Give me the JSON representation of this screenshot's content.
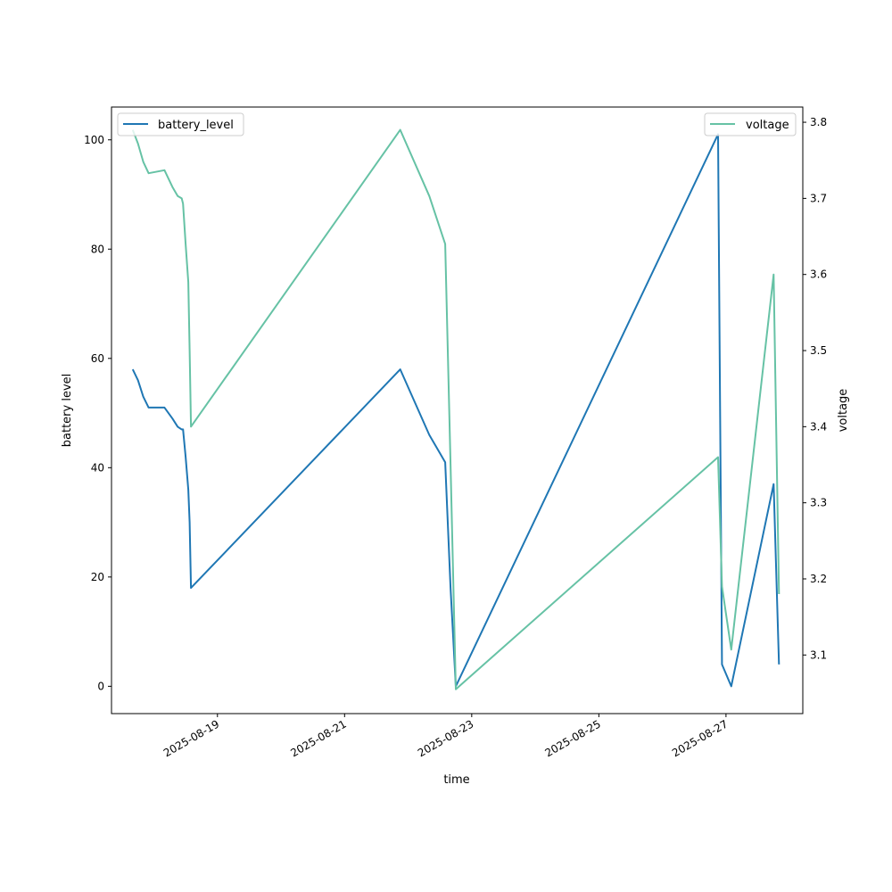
{
  "chart_data": {
    "type": "line",
    "xlabel": "time",
    "ylabel_left": "battery level",
    "ylabel_right": "voltage",
    "x_tick_labels": [
      "2025-08-19",
      "2025-08-21",
      "2025-08-23",
      "2025-08-25",
      "2025-08-27"
    ],
    "y_left_ticks": [
      0,
      20,
      40,
      60,
      80,
      100
    ],
    "y_right_ticks": [
      3.1,
      3.2,
      3.3,
      3.4,
      3.5,
      3.6,
      3.7,
      3.8
    ],
    "x_range": [
      "2025-08-17T08:00",
      "2025-08-28T05:00"
    ],
    "ylim_left": [
      -5,
      106
    ],
    "ylim_right": [
      3.023,
      3.82
    ],
    "legend_left": {
      "label": "battery_level",
      "position": "upper-left"
    },
    "legend_right": {
      "label": "voltage",
      "position": "upper-right"
    },
    "colors": {
      "battery_level": "#1f77b4",
      "voltage": "#66c2a5"
    },
    "series": [
      {
        "name": "battery_level",
        "axis": "left",
        "points": [
          [
            "2025-08-17T16:00",
            58
          ],
          [
            "2025-08-17T18:00",
            56
          ],
          [
            "2025-08-17T20:00",
            53
          ],
          [
            "2025-08-17T22:00",
            51
          ],
          [
            "2025-08-18T04:00",
            51
          ],
          [
            "2025-08-18T07:00",
            49
          ],
          [
            "2025-08-18T09:00",
            47.5
          ],
          [
            "2025-08-18T10:30",
            47
          ],
          [
            "2025-08-18T11:00",
            47
          ],
          [
            "2025-08-18T12:00",
            42
          ],
          [
            "2025-08-18T13:00",
            36
          ],
          [
            "2025-08-18T13:30",
            30
          ],
          [
            "2025-08-18T14:00",
            18
          ],
          [
            "2025-08-21T21:00",
            58
          ],
          [
            "2025-08-22T08:00",
            46
          ],
          [
            "2025-08-22T14:00",
            41
          ],
          [
            "2025-08-22T16:00",
            18
          ],
          [
            "2025-08-22T18:00",
            0
          ],
          [
            "2025-08-26T21:00",
            101
          ],
          [
            "2025-08-26T22:30",
            4
          ],
          [
            "2025-08-27T02:00",
            0
          ],
          [
            "2025-08-27T18:00",
            37
          ],
          [
            "2025-08-27T20:00",
            4
          ]
        ]
      },
      {
        "name": "voltage",
        "axis": "right",
        "points": [
          [
            "2025-08-17T16:00",
            3.79
          ],
          [
            "2025-08-17T18:00",
            3.772
          ],
          [
            "2025-08-17T20:00",
            3.748
          ],
          [
            "2025-08-17T22:00",
            3.733
          ],
          [
            "2025-08-18T04:00",
            3.737
          ],
          [
            "2025-08-18T07:00",
            3.715
          ],
          [
            "2025-08-18T09:00",
            3.703
          ],
          [
            "2025-08-18T10:30",
            3.7
          ],
          [
            "2025-08-18T11:00",
            3.693
          ],
          [
            "2025-08-18T12:00",
            3.64
          ],
          [
            "2025-08-18T13:00",
            3.59
          ],
          [
            "2025-08-18T13:30",
            3.5
          ],
          [
            "2025-08-18T14:00",
            3.4
          ],
          [
            "2025-08-21T21:00",
            3.79
          ],
          [
            "2025-08-22T08:00",
            3.703
          ],
          [
            "2025-08-22T14:00",
            3.64
          ],
          [
            "2025-08-22T16:00",
            3.35
          ],
          [
            "2025-08-22T18:00",
            3.055
          ],
          [
            "2025-08-26T21:00",
            3.36
          ],
          [
            "2025-08-26T22:30",
            3.19
          ],
          [
            "2025-08-27T02:00",
            3.107
          ],
          [
            "2025-08-27T18:00",
            3.6
          ],
          [
            "2025-08-27T20:00",
            3.18
          ]
        ]
      }
    ]
  }
}
